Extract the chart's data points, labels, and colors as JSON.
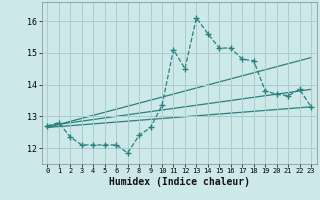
{
  "xlabel": "Humidex (Indice chaleur)",
  "background_color": "#cce8e8",
  "grid_color": "#aacccc",
  "line_color": "#2a7f7f",
  "xlim": [
    -0.5,
    23.5
  ],
  "ylim": [
    11.5,
    16.6
  ],
  "yticks": [
    12,
    13,
    14,
    15,
    16
  ],
  "xticks": [
    0,
    1,
    2,
    3,
    4,
    5,
    6,
    7,
    8,
    9,
    10,
    11,
    12,
    13,
    14,
    15,
    16,
    17,
    18,
    19,
    20,
    21,
    22,
    23
  ],
  "series_main": {
    "x": [
      0,
      1,
      2,
      3,
      4,
      5,
      6,
      7,
      8,
      9,
      10,
      11,
      12,
      13,
      14,
      15,
      16,
      17,
      18,
      19,
      20,
      21,
      22,
      23
    ],
    "y": [
      12.7,
      12.8,
      12.35,
      12.1,
      12.1,
      12.1,
      12.1,
      11.85,
      12.4,
      12.65,
      13.35,
      15.1,
      14.5,
      16.1,
      15.6,
      15.15,
      15.15,
      14.8,
      14.75,
      13.8,
      13.7,
      13.65,
      13.85,
      13.3
    ]
  },
  "series_line1": {
    "x": [
      0,
      23
    ],
    "y": [
      12.65,
      13.3
    ]
  },
  "series_line2": {
    "x": [
      0,
      23
    ],
    "y": [
      12.7,
      13.85
    ]
  },
  "series_line3": {
    "x": [
      0,
      23
    ],
    "y": [
      12.65,
      14.85
    ]
  }
}
